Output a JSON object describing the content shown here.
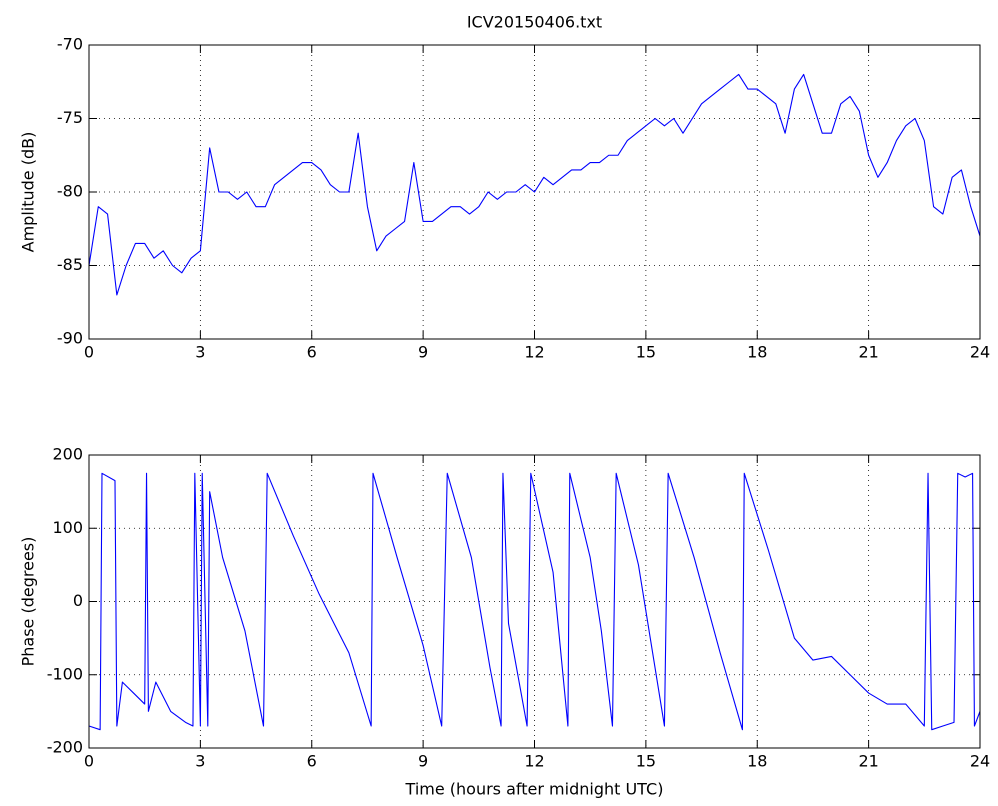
{
  "chart_data": [
    {
      "type": "line",
      "title": "ICV20150406.txt",
      "ylabel": "Amplitude (dB)",
      "xlim": [
        0,
        24
      ],
      "xticks": [
        0,
        3,
        6,
        9,
        12,
        15,
        18,
        21,
        24
      ],
      "ylim": [
        -90,
        -70
      ],
      "yticks": [
        -90,
        -85,
        -80,
        -75,
        -70
      ],
      "grid": true,
      "color": "#0000ff",
      "x": [
        0,
        0.25,
        0.5,
        0.75,
        1,
        1.25,
        1.5,
        1.75,
        2,
        2.25,
        2.5,
        2.75,
        3,
        3.25,
        3.5,
        3.75,
        4,
        4.25,
        4.5,
        4.75,
        5,
        5.25,
        5.5,
        5.75,
        6,
        6.25,
        6.5,
        6.75,
        7,
        7.25,
        7.5,
        7.75,
        8,
        8.25,
        8.5,
        8.75,
        9,
        9.25,
        9.5,
        9.75,
        10,
        10.25,
        10.5,
        10.75,
        11,
        11.25,
        11.5,
        11.75,
        12,
        12.25,
        12.5,
        12.75,
        13,
        13.25,
        13.5,
        13.75,
        14,
        14.25,
        14.5,
        14.75,
        15,
        15.25,
        15.5,
        15.75,
        16,
        16.25,
        16.5,
        16.75,
        17,
        17.25,
        17.5,
        17.75,
        18,
        18.25,
        18.5,
        18.75,
        19,
        19.25,
        19.5,
        19.75,
        20,
        20.25,
        20.5,
        20.75,
        21,
        21.25,
        21.5,
        21.75,
        22,
        22.25,
        22.5,
        22.75,
        23,
        23.25,
        23.5,
        23.75,
        24
      ],
      "values": [
        -85,
        -81,
        -81.5,
        -87,
        -85,
        -83.5,
        -83.5,
        -84.5,
        -84,
        -85,
        -85.5,
        -84.5,
        -84,
        -77,
        -80,
        -80,
        -80.5,
        -80,
        -81,
        -81,
        -79.5,
        -79,
        -78.5,
        -78,
        -78,
        -78.5,
        -79.5,
        -80,
        -80,
        -76,
        -81,
        -84,
        -83,
        -82.5,
        -82,
        -78,
        -82,
        -82,
        -81.5,
        -81,
        -81,
        -81.5,
        -81,
        -80,
        -80.5,
        -80,
        -80,
        -79.5,
        -80,
        -79,
        -79.5,
        -79,
        -78.5,
        -78.5,
        -78,
        -78,
        -77.5,
        -77.5,
        -76.5,
        -76,
        -75.5,
        -75,
        -75.5,
        -75,
        -76,
        -75,
        -74,
        -73.5,
        -73,
        -72.5,
        -72,
        -73,
        -73,
        -73.5,
        -74,
        -76,
        -73,
        -72,
        -74,
        -76,
        -76,
        -74,
        -73.5,
        -74.5,
        -77.5,
        -79,
        -78,
        -76.5,
        -75.5,
        -75,
        -76.5,
        -81,
        -81.5,
        -79,
        -78.5,
        -81,
        -83
      ]
    },
    {
      "type": "line",
      "ylabel": "Phase (degrees)",
      "xlabel": "Time (hours after midnight UTC)",
      "xlim": [
        0,
        24
      ],
      "xticks": [
        0,
        3,
        6,
        9,
        12,
        15,
        18,
        21,
        24
      ],
      "ylim": [
        -200,
        200
      ],
      "yticks": [
        -200,
        -100,
        0,
        100,
        200
      ],
      "grid": true,
      "color": "#0000ff",
      "x": [
        0,
        0.3,
        0.35,
        0.7,
        0.75,
        0.9,
        1.2,
        1.5,
        1.55,
        1.6,
        1.8,
        2.2,
        2.6,
        2.8,
        2.85,
        3.0,
        3.05,
        3.2,
        3.25,
        3.6,
        4.2,
        4.7,
        4.8,
        5.5,
        6.2,
        7.0,
        7.6,
        7.65,
        8.3,
        9.0,
        9.5,
        9.65,
        10.3,
        10.8,
        11.1,
        11.15,
        11.3,
        11.8,
        11.9,
        12.5,
        12.9,
        12.95,
        13.5,
        13.8,
        14.1,
        14.2,
        14.8,
        15.5,
        15.6,
        16.3,
        17.0,
        17.6,
        17.65,
        18.3,
        19.0,
        19.5,
        20.0,
        20.5,
        21.0,
        21.5,
        22.0,
        22.5,
        22.6,
        22.7,
        23.0,
        23.3,
        23.4,
        23.6,
        23.8,
        23.85,
        24.0
      ],
      "values": [
        -170,
        -175,
        175,
        165,
        -170,
        -110,
        -125,
        -140,
        175,
        -150,
        -110,
        -150,
        -165,
        -170,
        175,
        -170,
        175,
        -170,
        150,
        60,
        -40,
        -170,
        175,
        90,
        10,
        -70,
        -170,
        175,
        60,
        -60,
        -170,
        175,
        60,
        -90,
        -170,
        175,
        -30,
        -170,
        175,
        40,
        -170,
        175,
        60,
        -40,
        -170,
        175,
        50,
        -170,
        175,
        60,
        -70,
        -175,
        175,
        70,
        -50,
        -80,
        -75,
        -100,
        -125,
        -140,
        -140,
        -170,
        175,
        -175,
        -170,
        -165,
        175,
        170,
        175,
        -170,
        -150
      ]
    }
  ]
}
